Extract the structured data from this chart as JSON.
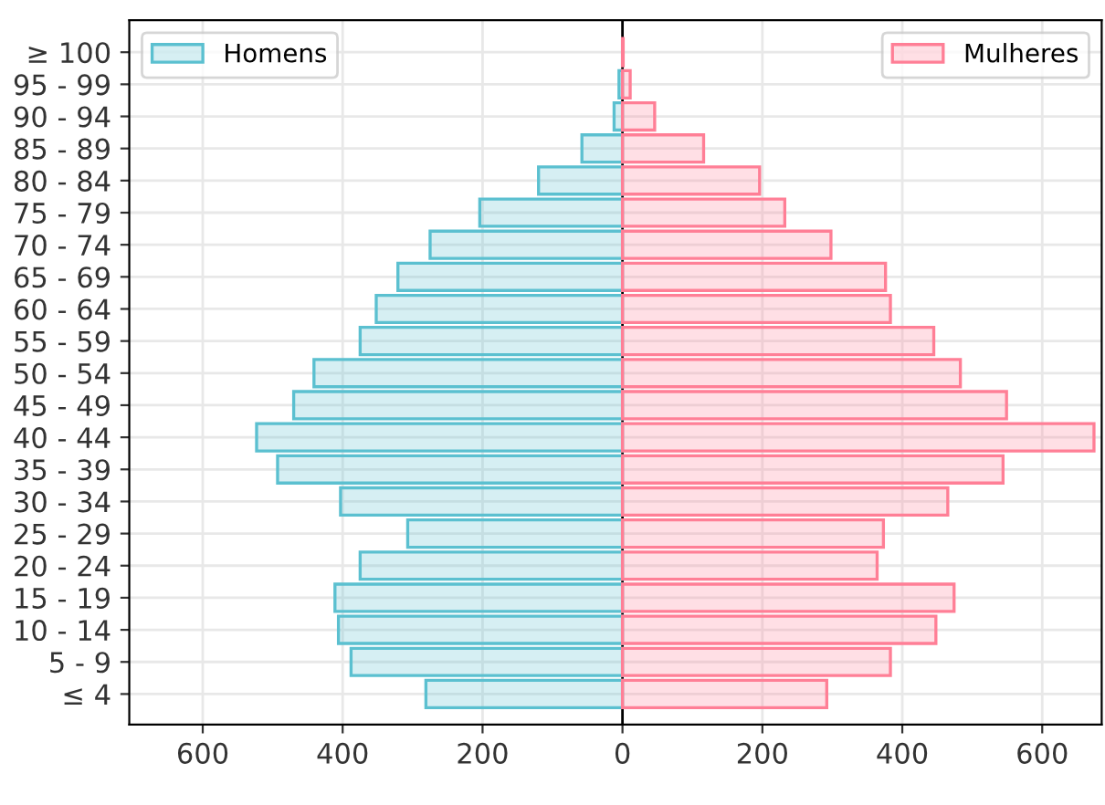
{
  "chart_data": {
    "type": "bar",
    "orientation": "horizontal",
    "categories": [
      "≥ 100",
      "95 - 99",
      "90 - 94",
      "85 - 89",
      "80 - 84",
      "75 - 79",
      "70 - 74",
      "65 - 69",
      "60 - 64",
      "55 - 59",
      "50 - 54",
      "45 - 49",
      "40 - 44",
      "35 - 39",
      "30 - 34",
      "25 - 29",
      "20 - 24",
      "15 - 19",
      "10 - 14",
      "5 - 9",
      "≤ 4"
    ],
    "series": [
      {
        "name": "Homens",
        "color": "#5bc0d0",
        "values": [
          null,
          -5,
          -12,
          -58,
          -120,
          -204,
          -275,
          -321,
          -352,
          -375,
          -441,
          -470,
          -523,
          -493,
          -403,
          -307,
          -375,
          -411,
          -406,
          -388,
          -281
        ]
      },
      {
        "name": "Mulheres",
        "color": "#ff7f96",
        "values": [
          1,
          11,
          46,
          116,
          196,
          232,
          298,
          376,
          383,
          445,
          483,
          549,
          674,
          544,
          465,
          373,
          364,
          474,
          448,
          383,
          292
        ]
      }
    ],
    "xlim": [
      -705,
      685
    ],
    "xticks": [
      {
        "value": -600,
        "label": "600"
      },
      {
        "value": -400,
        "label": "400"
      },
      {
        "value": -200,
        "label": "200"
      },
      0,
      200,
      400,
      600
    ],
    "ref_lines": [
      {
        "axis": "x",
        "value": 0,
        "color": "#000000"
      }
    ],
    "grid": true,
    "legend": "top"
  }
}
